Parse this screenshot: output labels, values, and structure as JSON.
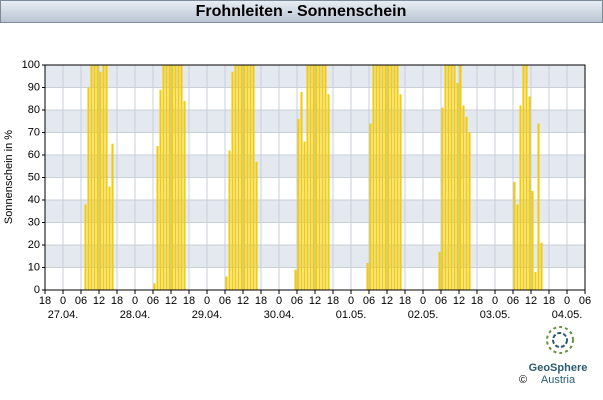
{
  "chart_data": {
    "type": "bar",
    "title": "Frohnleiten - Sonnenschein",
    "y_label": "Sonnenschein in %",
    "color": "#f2cc0c",
    "x": [
      13,
      14,
      15,
      16,
      17,
      18,
      19,
      20,
      21,
      22,
      36,
      37,
      38,
      39,
      40,
      41,
      42,
      43,
      44,
      45,
      46,
      60,
      61,
      62,
      63,
      64,
      65,
      66,
      67,
      68,
      69,
      70,
      83,
      84,
      85,
      86,
      87,
      88,
      89,
      90,
      91,
      92,
      93,
      94,
      107,
      108,
      109,
      110,
      111,
      112,
      113,
      114,
      115,
      116,
      117,
      118,
      131,
      132,
      133,
      134,
      135,
      136,
      137,
      138,
      139,
      140,
      141,
      156,
      157,
      158,
      159,
      160,
      161,
      162,
      163,
      164,
      165
    ],
    "values": [
      38,
      90,
      100,
      100,
      100,
      97,
      100,
      100,
      46,
      65,
      3,
      64,
      89,
      100,
      100,
      100,
      100,
      100,
      100,
      100,
      84,
      6,
      62,
      97,
      100,
      100,
      100,
      100,
      100,
      100,
      100,
      57,
      9,
      76,
      88,
      66,
      100,
      100,
      100,
      100,
      100,
      100,
      100,
      87,
      12,
      74,
      100,
      100,
      100,
      100,
      100,
      100,
      100,
      100,
      100,
      87,
      17,
      81,
      100,
      100,
      100,
      100,
      92,
      100,
      82,
      77,
      70,
      48,
      38,
      82,
      100,
      100,
      86,
      44,
      8,
      74,
      21
    ],
    "xlim": [
      0,
      180
    ],
    "ylim": [
      0,
      100
    ],
    "yticks": [
      0,
      10,
      20,
      30,
      40,
      50,
      60,
      70,
      80,
      90,
      100
    ],
    "xticks": [
      {
        "value": 0,
        "label": "18"
      },
      {
        "value": 6,
        "label": "0"
      },
      {
        "value": 12,
        "label": "06"
      },
      {
        "value": 18,
        "label": "12"
      },
      {
        "value": 24,
        "label": "18"
      },
      {
        "value": 30,
        "label": "0"
      },
      {
        "value": 36,
        "label": "06"
      },
      {
        "value": 42,
        "label": "12"
      },
      {
        "value": 48,
        "label": "18"
      },
      {
        "value": 54,
        "label": "0"
      },
      {
        "value": 60,
        "label": "06"
      },
      {
        "value": 66,
        "label": "12"
      },
      {
        "value": 72,
        "label": "18"
      },
      {
        "value": 78,
        "label": "0"
      },
      {
        "value": 84,
        "label": "06"
      },
      {
        "value": 90,
        "label": "12"
      },
      {
        "value": 96,
        "label": "18"
      },
      {
        "value": 102,
        "label": "0"
      },
      {
        "value": 108,
        "label": "06"
      },
      {
        "value": 114,
        "label": "12"
      },
      {
        "value": 120,
        "label": "18"
      },
      {
        "value": 126,
        "label": "0"
      },
      {
        "value": 132,
        "label": "06"
      },
      {
        "value": 138,
        "label": "12"
      },
      {
        "value": 144,
        "label": "18"
      },
      {
        "value": 150,
        "label": "0"
      },
      {
        "value": 156,
        "label": "06"
      },
      {
        "value": 162,
        "label": "12"
      },
      {
        "value": 168,
        "label": "18"
      },
      {
        "value": 174,
        "label": "0"
      },
      {
        "value": 180,
        "label": "06"
      }
    ],
    "date_labels": [
      {
        "value": 6,
        "label": "27.04."
      },
      {
        "value": 30,
        "label": "28.04."
      },
      {
        "value": 54,
        "label": "29.04."
      },
      {
        "value": 78,
        "label": "30.04."
      },
      {
        "value": 102,
        "label": "01.05."
      },
      {
        "value": 126,
        "label": "02.05."
      },
      {
        "value": 150,
        "label": "03.05."
      },
      {
        "value": 174,
        "label": "04.05."
      }
    ],
    "grid": true
  },
  "footer": {
    "brand": "GeoSphere",
    "brand_sub": "Austria",
    "copyright": "©"
  }
}
